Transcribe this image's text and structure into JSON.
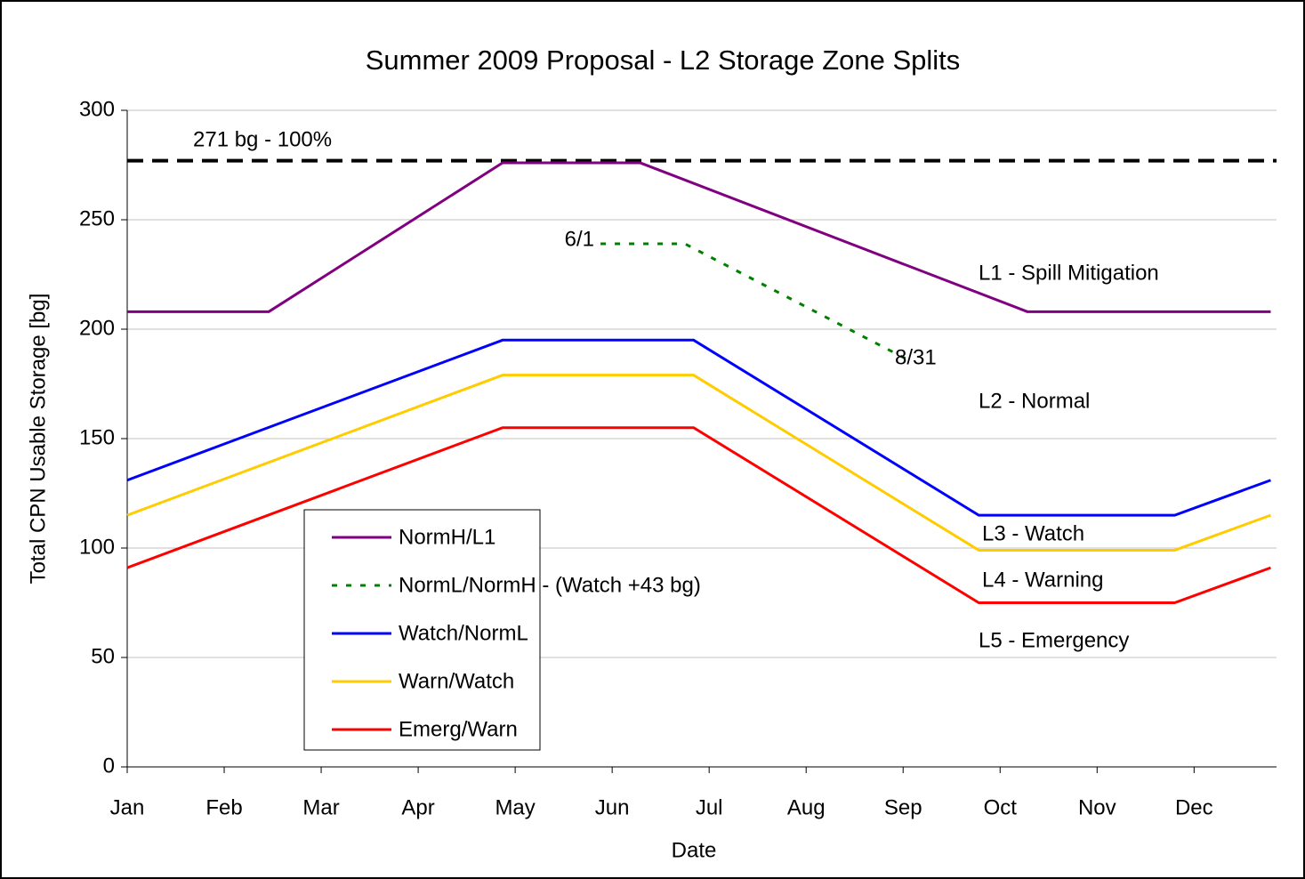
{
  "chart_data": {
    "type": "line",
    "title": "Summer 2009 Proposal - L2 Storage Zone Splits",
    "x_label": "Date",
    "y_label": "Total CPN Usable Storage [bg]",
    "xlim": [
      0,
      11.85
    ],
    "xticks": [
      {
        "value": 0,
        "label": "Jan"
      },
      {
        "value": 1,
        "label": "Feb"
      },
      {
        "value": 2,
        "label": "Mar"
      },
      {
        "value": 3,
        "label": "Apr"
      },
      {
        "value": 4,
        "label": "May"
      },
      {
        "value": 5,
        "label": "Jun"
      },
      {
        "value": 6,
        "label": "Jul"
      },
      {
        "value": 7,
        "label": "Aug"
      },
      {
        "value": 8,
        "label": "Sep"
      },
      {
        "value": 9,
        "label": "Oct"
      },
      {
        "value": 10,
        "label": "Nov"
      },
      {
        "value": 11,
        "label": "Dec"
      }
    ],
    "ylim": [
      0,
      300
    ],
    "yticks": [
      0,
      50,
      100,
      150,
      200,
      250,
      300
    ],
    "grid": true,
    "series": [
      {
        "name": "NormH/L1",
        "color": "#800080",
        "dash": false,
        "x": [
          0,
          1.46,
          3.87,
          5.29,
          9.28,
          11.79
        ],
        "values": [
          208,
          208,
          276,
          276,
          208,
          208
        ]
      },
      {
        "name": "NormL/NormH - (Watch +43 bg)",
        "color": "#008000",
        "dash": true,
        "x": [
          4.88,
          5.75,
          8.05
        ],
        "values": [
          239,
          239,
          186
        ]
      },
      {
        "name": "Watch/NormL",
        "color": "#0000ff",
        "dash": false,
        "x": [
          0,
          3.87,
          5.84,
          8.78,
          10.8,
          11.79
        ],
        "values": [
          131,
          195,
          195,
          115,
          115,
          131
        ]
      },
      {
        "name": "Warn/Watch",
        "color": "#ffcc00",
        "dash": false,
        "x": [
          0,
          3.87,
          5.84,
          8.78,
          10.8,
          11.79
        ],
        "values": [
          115,
          179,
          179,
          99,
          99,
          115
        ]
      },
      {
        "name": "Emerg/Warn",
        "color": "#ff0000",
        "dash": false,
        "x": [
          0,
          3.87,
          5.84,
          8.78,
          10.8,
          11.79
        ],
        "values": [
          91,
          155,
          155,
          75,
          75,
          91
        ]
      }
    ],
    "reference_line": {
      "y": 277,
      "color": "#000000"
    },
    "annotations": [
      "271 bg - 100%",
      "6/1",
      "8/31",
      "L1 - Spill Mitigation",
      "L2 - Normal",
      "L3 - Watch",
      "L4 - Warning",
      "L5 - Emergency"
    ]
  }
}
